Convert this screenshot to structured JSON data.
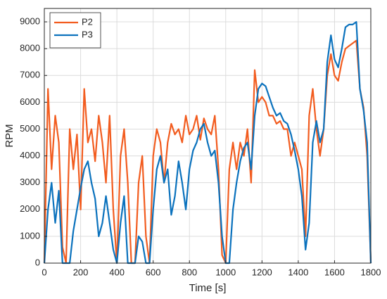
{
  "chart_data": {
    "type": "line",
    "x_label": "Time [s]",
    "y_label": "RPM",
    "x": [
      0,
      20,
      40,
      60,
      80,
      100,
      120,
      140,
      160,
      180,
      200,
      220,
      240,
      260,
      280,
      300,
      320,
      340,
      360,
      380,
      400,
      420,
      440,
      460,
      480,
      500,
      520,
      540,
      560,
      580,
      600,
      620,
      640,
      660,
      680,
      700,
      720,
      740,
      760,
      780,
      800,
      820,
      840,
      860,
      880,
      900,
      920,
      940,
      960,
      980,
      1000,
      1020,
      1040,
      1060,
      1080,
      1100,
      1120,
      1140,
      1160,
      1180,
      1200,
      1220,
      1240,
      1260,
      1280,
      1300,
      1320,
      1340,
      1360,
      1380,
      1400,
      1420,
      1440,
      1460,
      1480,
      1500,
      1520,
      1540,
      1560,
      1580,
      1600,
      1620,
      1640,
      1660,
      1680,
      1700,
      1720,
      1740,
      1760,
      1780,
      1800
    ],
    "series": [
      {
        "name": "P2",
        "color": "#f25c1f",
        "values": [
          0,
          6500,
          3500,
          5500,
          4500,
          600,
          0,
          5000,
          3500,
          4800,
          2000,
          6500,
          4500,
          5000,
          3800,
          5500,
          4500,
          3000,
          5500,
          2000,
          0,
          4000,
          5000,
          3000,
          0,
          0,
          3000,
          4000,
          1000,
          0,
          4000,
          5000,
          4500,
          3000,
          4500,
          5200,
          4800,
          5000,
          4500,
          5500,
          4800,
          5000,
          5500,
          4600,
          5400,
          5000,
          4800,
          5500,
          3500,
          300,
          0,
          3500,
          4500,
          3500,
          4500,
          4000,
          5000,
          3000,
          7200,
          6000,
          6200,
          6000,
          5500,
          5500,
          5200,
          5300,
          5000,
          5000,
          4000,
          4500,
          4000,
          3500,
          1000,
          5500,
          6500,
          5000,
          4000,
          5000,
          7000,
          7800,
          7000,
          6800,
          7500,
          8000,
          8100,
          8200,
          8300,
          6500,
          5800,
          4000,
          0
        ]
      },
      {
        "name": "P3",
        "color": "#0b72bd",
        "values": [
          0,
          2000,
          3000,
          1500,
          2700,
          0,
          0,
          0,
          1200,
          2000,
          2800,
          3500,
          3800,
          3000,
          2400,
          1000,
          1500,
          2500,
          1500,
          500,
          0,
          1500,
          2500,
          0,
          0,
          0,
          1000,
          800,
          0,
          0,
          2000,
          3500,
          4000,
          3000,
          3500,
          1800,
          2500,
          3800,
          3000,
          2000,
          3500,
          4200,
          4500,
          5000,
          5200,
          4500,
          4000,
          4200,
          3000,
          1000,
          0,
          0,
          2000,
          3000,
          3800,
          4300,
          4500,
          3500,
          5500,
          6500,
          6700,
          6600,
          6200,
          5800,
          5500,
          5600,
          5300,
          5200,
          4800,
          4200,
          3500,
          2500,
          500,
          1500,
          4500,
          5300,
          4500,
          5000,
          7500,
          8500,
          7600,
          7300,
          8000,
          8800,
          8900,
          8900,
          9000,
          6500,
          5700,
          4500,
          0
        ]
      }
    ],
    "xlim": [
      0,
      1800
    ],
    "xticks": [
      0,
      200,
      400,
      600,
      800,
      1000,
      1200,
      1400,
      1600,
      1800
    ],
    "ylim": [
      0,
      9500
    ],
    "yticks": [
      0,
      1000,
      2000,
      3000,
      4000,
      5000,
      6000,
      7000,
      8000,
      9000
    ],
    "grid": true,
    "legend": "top-left"
  }
}
